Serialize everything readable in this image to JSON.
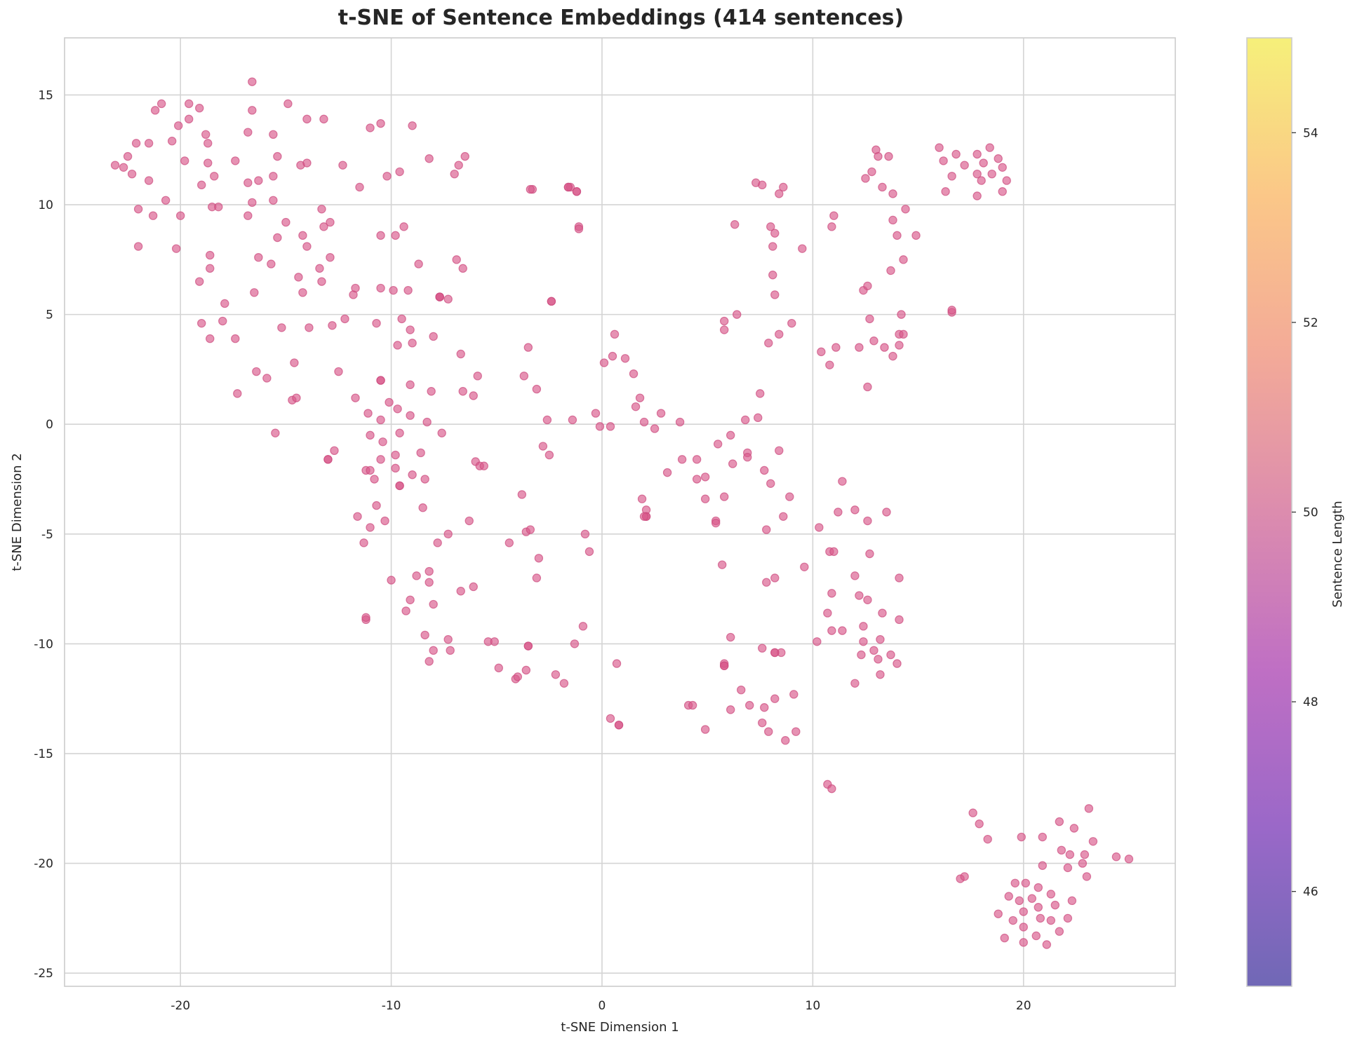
{
  "chart_data": {
    "type": "scatter",
    "title": "t-SNE of Sentence Embeddings (414 sentences)",
    "xlabel": "t-SNE Dimension 1",
    "ylabel": "t-SNE Dimension 2",
    "xlim": [
      -25.5,
      27.2
    ],
    "ylim": [
      -25.6,
      17.6
    ],
    "xticks": [
      -20,
      -10,
      0,
      10,
      20
    ],
    "yticks": [
      15,
      10,
      5,
      0,
      -5,
      -10,
      -15,
      -20,
      -25
    ],
    "grid": true,
    "point_color": "#d9578a",
    "point_alpha": 0.65,
    "colorbar": {
      "label": "Sentence Length",
      "range": [
        45,
        55
      ],
      "ticks": [
        46,
        48,
        50,
        52,
        54
      ],
      "colormap": "plasma",
      "stops": [
        "#7068b6",
        "#9a68c8",
        "#bf6fc4",
        "#dc8cae",
        "#f3aa98",
        "#fbc788",
        "#f6f07a"
      ]
    },
    "points": [
      [
        -23.1,
        11.8
      ],
      [
        -22.7,
        11.7
      ],
      [
        -22.5,
        12.2
      ],
      [
        -22.3,
        11.4
      ],
      [
        -22.1,
        12.8
      ],
      [
        -22.0,
        9.8
      ],
      [
        -22.0,
        8.1
      ],
      [
        -21.5,
        11.1
      ],
      [
        -21.5,
        12.8
      ],
      [
        -21.3,
        9.5
      ],
      [
        -21.2,
        14.3
      ],
      [
        -20.9,
        14.6
      ],
      [
        -20.7,
        10.2
      ],
      [
        -20.4,
        12.9
      ],
      [
        -20.1,
        13.6
      ],
      [
        -20.0,
        9.5
      ],
      [
        -20.2,
        8.0
      ],
      [
        -19.8,
        12.0
      ],
      [
        -19.6,
        14.6
      ],
      [
        -19.6,
        13.9
      ],
      [
        -19.1,
        14.4
      ],
      [
        -19.0,
        10.9
      ],
      [
        -18.8,
        13.2
      ],
      [
        -18.7,
        12.8
      ],
      [
        -18.7,
        11.9
      ],
      [
        -18.6,
        7.7
      ],
      [
        -18.6,
        7.1
      ],
      [
        -18.6,
        3.9
      ],
      [
        -18.5,
        9.9
      ],
      [
        -18.4,
        11.3
      ],
      [
        -18.2,
        9.9
      ],
      [
        -19.1,
        6.5
      ],
      [
        -19.0,
        4.6
      ],
      [
        -17.9,
        5.5
      ],
      [
        -18.0,
        4.7
      ],
      [
        -17.4,
        12.0
      ],
      [
        -17.4,
        3.9
      ],
      [
        -17.3,
        1.4
      ],
      [
        -16.8,
        13.3
      ],
      [
        -16.8,
        11.0
      ],
      [
        -16.8,
        9.5
      ],
      [
        -16.6,
        15.6
      ],
      [
        -16.6,
        14.3
      ],
      [
        -16.6,
        10.1
      ],
      [
        -16.5,
        6.0
      ],
      [
        -16.4,
        2.4
      ],
      [
        -16.3,
        7.6
      ],
      [
        -16.3,
        11.1
      ],
      [
        -15.9,
        2.1
      ],
      [
        -15.7,
        7.3
      ],
      [
        -15.6,
        13.2
      ],
      [
        -15.6,
        11.3
      ],
      [
        -15.6,
        10.2
      ],
      [
        -15.4,
        12.2
      ],
      [
        -15.4,
        8.5
      ],
      [
        -15.5,
        -0.4
      ],
      [
        -15.2,
        4.4
      ],
      [
        -15.0,
        9.2
      ],
      [
        -14.9,
        14.6
      ],
      [
        -14.7,
        1.1
      ],
      [
        -14.6,
        2.8
      ],
      [
        -14.5,
        1.2
      ],
      [
        -14.4,
        6.7
      ],
      [
        -14.3,
        11.8
      ],
      [
        -14.2,
        8.6
      ],
      [
        -14.2,
        6.0
      ],
      [
        -14.0,
        11.9
      ],
      [
        -14.0,
        8.1
      ],
      [
        -14.0,
        13.9
      ],
      [
        -13.9,
        4.4
      ],
      [
        -13.4,
        7.1
      ],
      [
        -13.3,
        9.8
      ],
      [
        -13.3,
        6.5
      ],
      [
        -13.2,
        13.9
      ],
      [
        -13.2,
        9.0
      ],
      [
        -13.0,
        -1.6
      ],
      [
        -12.9,
        9.2
      ],
      [
        -12.9,
        7.6
      ],
      [
        -12.8,
        4.5
      ],
      [
        -12.7,
        -1.2
      ],
      [
        -12.5,
        2.4
      ],
      [
        -12.3,
        11.8
      ],
      [
        -12.2,
        4.8
      ],
      [
        -11.8,
        5.9
      ],
      [
        -11.7,
        6.2
      ],
      [
        -11.7,
        1.2
      ],
      [
        -11.6,
        -4.2
      ],
      [
        -11.5,
        10.8
      ],
      [
        -11.3,
        -5.4
      ],
      [
        -11.2,
        -8.9
      ],
      [
        -11.2,
        -8.8
      ],
      [
        -11.2,
        -2.1
      ],
      [
        -11.1,
        0.5
      ],
      [
        -11.0,
        -4.7
      ],
      [
        -11.0,
        13.5
      ],
      [
        -11.0,
        -0.5
      ],
      [
        -10.8,
        -2.5
      ],
      [
        -10.7,
        -3.7
      ],
      [
        -10.7,
        4.6
      ],
      [
        -10.5,
        13.7
      ],
      [
        -10.5,
        8.6
      ],
      [
        -10.5,
        6.2
      ],
      [
        -10.5,
        2.0
      ],
      [
        -10.5,
        0.2
      ],
      [
        -10.5,
        -1.6
      ],
      [
        -10.4,
        -0.8
      ],
      [
        -10.3,
        -4.4
      ],
      [
        -10.2,
        11.3
      ],
      [
        -10.1,
        1.0
      ],
      [
        -10.0,
        -7.1
      ],
      [
        -9.9,
        6.1
      ],
      [
        -9.8,
        8.6
      ],
      [
        -9.8,
        -1.4
      ],
      [
        -9.8,
        -2.0
      ],
      [
        -9.7,
        3.6
      ],
      [
        -9.7,
        0.7
      ],
      [
        -9.6,
        11.5
      ],
      [
        -9.6,
        -0.4
      ],
      [
        -9.6,
        -2.8
      ],
      [
        -9.5,
        4.8
      ],
      [
        -9.4,
        9.0
      ],
      [
        -9.3,
        -8.5
      ],
      [
        -9.2,
        6.1
      ],
      [
        -9.1,
        4.3
      ],
      [
        -9.1,
        1.8
      ],
      [
        -9.1,
        0.4
      ],
      [
        -9.1,
        -8.0
      ],
      [
        -9.0,
        13.6
      ],
      [
        -9.0,
        -2.3
      ],
      [
        -9.0,
        3.7
      ],
      [
        -8.8,
        -6.9
      ],
      [
        -8.7,
        7.3
      ],
      [
        -8.6,
        -1.3
      ],
      [
        -8.5,
        -3.8
      ],
      [
        -8.4,
        -9.6
      ],
      [
        -8.4,
        -2.5
      ],
      [
        -8.3,
        0.1
      ],
      [
        -8.2,
        -6.7
      ],
      [
        -8.2,
        -7.2
      ],
      [
        -8.2,
        -10.8
      ],
      [
        -8.2,
        12.1
      ],
      [
        -8.1,
        1.5
      ],
      [
        -8.0,
        -8.2
      ],
      [
        -8.0,
        -10.3
      ],
      [
        -8.0,
        4.0
      ],
      [
        -7.8,
        -5.4
      ],
      [
        -7.7,
        5.8
      ],
      [
        -7.6,
        -0.4
      ],
      [
        -7.7,
        5.8
      ],
      [
        -7.3,
        5.7
      ],
      [
        -7.3,
        -9.8
      ],
      [
        -7.3,
        -5.0
      ],
      [
        -7.2,
        -10.3
      ],
      [
        -7.0,
        11.4
      ],
      [
        -6.9,
        7.5
      ],
      [
        -6.8,
        11.8
      ],
      [
        -6.7,
        3.2
      ],
      [
        -6.7,
        -7.6
      ],
      [
        -6.6,
        1.5
      ],
      [
        -6.6,
        7.1
      ],
      [
        -6.5,
        12.2
      ],
      [
        -6.3,
        -4.4
      ],
      [
        -6.1,
        1.3
      ],
      [
        -6.1,
        -7.4
      ],
      [
        -6.0,
        -1.7
      ],
      [
        -5.9,
        2.2
      ],
      [
        -5.8,
        -1.9
      ],
      [
        -5.6,
        -1.9
      ],
      [
        -5.4,
        -9.9
      ],
      [
        -5.1,
        -9.9
      ],
      [
        -4.9,
        -11.1
      ],
      [
        -4.4,
        -5.4
      ],
      [
        -4.1,
        -11.6
      ],
      [
        -4.0,
        -11.5
      ],
      [
        -3.8,
        -3.2
      ],
      [
        -3.7,
        2.2
      ],
      [
        -3.6,
        -11.2
      ],
      [
        -3.6,
        -4.9
      ],
      [
        -3.5,
        3.5
      ],
      [
        -3.5,
        -10.1
      ],
      [
        -3.4,
        -4.8
      ],
      [
        -3.3,
        10.7
      ],
      [
        -3.4,
        10.7
      ],
      [
        -3.1,
        1.6
      ],
      [
        -3.1,
        -7.0
      ],
      [
        -3.0,
        -6.1
      ],
      [
        -2.8,
        -1.0
      ],
      [
        -2.6,
        0.2
      ],
      [
        -2.5,
        -1.4
      ],
      [
        -2.4,
        5.6
      ],
      [
        -2.2,
        -11.4
      ],
      [
        -1.8,
        -11.8
      ],
      [
        -1.6,
        10.8
      ],
      [
        -1.5,
        10.8
      ],
      [
        -1.4,
        0.2
      ],
      [
        -1.3,
        -10.0
      ],
      [
        -1.2,
        10.6
      ],
      [
        -1.2,
        10.6
      ],
      [
        -1.1,
        9.0
      ],
      [
        -1.1,
        8.9
      ],
      [
        -0.9,
        -9.2
      ],
      [
        -0.8,
        -5.0
      ],
      [
        -0.6,
        -5.8
      ],
      [
        -0.3,
        0.5
      ],
      [
        -0.1,
        -0.1
      ],
      [
        0.1,
        2.8
      ],
      [
        0.4,
        -0.1
      ],
      [
        0.4,
        -13.4
      ],
      [
        0.5,
        3.1
      ],
      [
        0.6,
        4.1
      ],
      [
        0.7,
        -10.9
      ],
      [
        0.8,
        -13.7
      ],
      [
        0.8,
        -13.7
      ],
      [
        1.1,
        3.0
      ],
      [
        1.5,
        2.3
      ],
      [
        1.6,
        0.8
      ],
      [
        1.8,
        1.2
      ],
      [
        1.9,
        -3.4
      ],
      [
        2.0,
        0.1
      ],
      [
        2.1,
        -3.9
      ],
      [
        2.1,
        -4.2
      ],
      [
        2.1,
        -4.2
      ],
      [
        2.5,
        -0.2
      ],
      [
        2.8,
        0.5
      ],
      [
        3.1,
        -2.2
      ],
      [
        3.7,
        0.1
      ],
      [
        3.8,
        -1.6
      ],
      [
        4.1,
        -12.8
      ],
      [
        4.3,
        -12.8
      ],
      [
        4.5,
        -2.5
      ],
      [
        4.5,
        -1.6
      ],
      [
        4.9,
        -13.9
      ],
      [
        4.9,
        -2.4
      ],
      [
        4.9,
        -3.4
      ],
      [
        5.4,
        -4.4
      ],
      [
        5.4,
        -4.5
      ],
      [
        5.5,
        -0.9
      ],
      [
        5.7,
        -6.4
      ],
      [
        5.8,
        -11.0
      ],
      [
        5.8,
        -10.9
      ],
      [
        5.8,
        4.7
      ],
      [
        5.8,
        4.3
      ],
      [
        5.8,
        -3.3
      ],
      [
        6.1,
        -13.0
      ],
      [
        6.1,
        -9.7
      ],
      [
        6.1,
        -0.5
      ],
      [
        6.2,
        -1.8
      ],
      [
        6.3,
        9.1
      ],
      [
        6.4,
        5.0
      ],
      [
        6.6,
        -12.1
      ],
      [
        6.8,
        0.2
      ],
      [
        6.9,
        -1.3
      ],
      [
        6.9,
        -1.5
      ],
      [
        7.0,
        -12.8
      ],
      [
        7.3,
        11.0
      ],
      [
        7.4,
        0.3
      ],
      [
        7.5,
        1.4
      ],
      [
        7.6,
        10.9
      ],
      [
        7.6,
        -13.6
      ],
      [
        7.6,
        -10.2
      ],
      [
        7.7,
        -12.9
      ],
      [
        7.7,
        -2.1
      ],
      [
        7.8,
        -7.2
      ],
      [
        7.8,
        -4.8
      ],
      [
        7.9,
        -14.0
      ],
      [
        7.9,
        3.7
      ],
      [
        8.0,
        9.0
      ],
      [
        8.0,
        -2.7
      ],
      [
        8.1,
        8.1
      ],
      [
        8.1,
        6.8
      ],
      [
        8.2,
        8.7
      ],
      [
        8.2,
        5.9
      ],
      [
        8.2,
        -7.0
      ],
      [
        8.2,
        -10.4
      ],
      [
        8.2,
        -12.5
      ],
      [
        8.4,
        10.5
      ],
      [
        8.4,
        -1.2
      ],
      [
        8.4,
        4.1
      ],
      [
        8.5,
        -10.4
      ],
      [
        8.6,
        10.8
      ],
      [
        8.6,
        -4.2
      ],
      [
        8.7,
        -14.4
      ],
      [
        8.9,
        -3.3
      ],
      [
        9.0,
        4.6
      ],
      [
        9.1,
        -12.3
      ],
      [
        9.2,
        -14.0
      ],
      [
        9.5,
        8.0
      ],
      [
        9.6,
        -6.5
      ],
      [
        10.2,
        -9.9
      ],
      [
        10.3,
        -4.7
      ],
      [
        10.4,
        3.3
      ],
      [
        10.7,
        -16.4
      ],
      [
        10.7,
        -8.6
      ],
      [
        10.8,
        -5.8
      ],
      [
        10.8,
        2.7
      ],
      [
        10.9,
        -16.6
      ],
      [
        10.9,
        9.0
      ],
      [
        10.9,
        -9.4
      ],
      [
        10.9,
        -7.7
      ],
      [
        11.0,
        9.5
      ],
      [
        11.0,
        -5.8
      ],
      [
        11.1,
        3.5
      ],
      [
        11.2,
        -4.0
      ],
      [
        11.4,
        -9.4
      ],
      [
        11.4,
        -2.6
      ],
      [
        12.0,
        -3.9
      ],
      [
        12.0,
        -6.9
      ],
      [
        12.0,
        -11.8
      ],
      [
        12.2,
        -7.8
      ],
      [
        12.2,
        3.5
      ],
      [
        12.3,
        -10.5
      ],
      [
        12.4,
        6.1
      ],
      [
        12.4,
        -9.9
      ],
      [
        12.4,
        -9.2
      ],
      [
        12.5,
        11.2
      ],
      [
        12.6,
        6.3
      ],
      [
        12.6,
        1.7
      ],
      [
        12.6,
        -4.4
      ],
      [
        12.6,
        -8.0
      ],
      [
        12.7,
        -5.9
      ],
      [
        12.7,
        4.8
      ],
      [
        12.8,
        11.5
      ],
      [
        12.9,
        -10.3
      ],
      [
        12.9,
        3.8
      ],
      [
        13.0,
        12.5
      ],
      [
        13.1,
        -10.7
      ],
      [
        13.1,
        12.2
      ],
      [
        13.2,
        -11.4
      ],
      [
        13.2,
        -9.8
      ],
      [
        13.3,
        10.8
      ],
      [
        13.3,
        -8.6
      ],
      [
        13.4,
        3.5
      ],
      [
        13.5,
        -4.0
      ],
      [
        13.6,
        12.2
      ],
      [
        13.7,
        7.0
      ],
      [
        13.7,
        -10.5
      ],
      [
        13.8,
        10.5
      ],
      [
        13.8,
        9.3
      ],
      [
        13.8,
        3.1
      ],
      [
        14.0,
        8.6
      ],
      [
        14.0,
        -10.9
      ],
      [
        14.1,
        4.1
      ],
      [
        14.1,
        3.6
      ],
      [
        14.1,
        -8.9
      ],
      [
        14.1,
        -7.0
      ],
      [
        14.2,
        5.0
      ],
      [
        14.3,
        7.5
      ],
      [
        14.3,
        4.1
      ],
      [
        14.4,
        9.8
      ],
      [
        14.9,
        8.6
      ],
      [
        16.0,
        12.6
      ],
      [
        16.2,
        12.0
      ],
      [
        16.3,
        10.6
      ],
      [
        16.6,
        11.3
      ],
      [
        16.6,
        5.1
      ],
      [
        16.6,
        5.2
      ],
      [
        16.8,
        12.3
      ],
      [
        17.0,
        -20.7
      ],
      [
        17.2,
        -20.6
      ],
      [
        17.2,
        11.8
      ],
      [
        17.6,
        -17.7
      ],
      [
        17.8,
        10.4
      ],
      [
        17.8,
        11.4
      ],
      [
        17.8,
        12.3
      ],
      [
        17.9,
        -18.2
      ],
      [
        18.0,
        11.1
      ],
      [
        18.1,
        11.9
      ],
      [
        18.3,
        -18.9
      ],
      [
        18.4,
        12.6
      ],
      [
        18.5,
        11.4
      ],
      [
        18.8,
        -22.3
      ],
      [
        18.8,
        12.1
      ],
      [
        19.0,
        10.6
      ],
      [
        19.0,
        11.7
      ],
      [
        19.1,
        -23.4
      ],
      [
        19.2,
        11.1
      ],
      [
        19.3,
        -21.5
      ],
      [
        19.5,
        -22.6
      ],
      [
        19.6,
        -20.9
      ],
      [
        19.8,
        -21.7
      ],
      [
        19.9,
        -18.8
      ],
      [
        20.0,
        -22.9
      ],
      [
        20.0,
        -22.2
      ],
      [
        20.0,
        -23.6
      ],
      [
        20.1,
        -20.9
      ],
      [
        20.4,
        -21.6
      ],
      [
        20.6,
        -23.3
      ],
      [
        20.7,
        -22.0
      ],
      [
        20.7,
        -21.1
      ],
      [
        20.8,
        -22.5
      ],
      [
        20.9,
        -18.8
      ],
      [
        20.9,
        -20.1
      ],
      [
        21.1,
        -23.7
      ],
      [
        21.3,
        -21.4
      ],
      [
        21.3,
        -22.6
      ],
      [
        21.5,
        -21.9
      ],
      [
        21.7,
        -23.1
      ],
      [
        21.7,
        -18.1
      ],
      [
        21.8,
        -19.4
      ],
      [
        22.1,
        -22.5
      ],
      [
        22.1,
        -20.2
      ],
      [
        22.2,
        -19.6
      ],
      [
        22.3,
        -21.7
      ],
      [
        22.4,
        -18.4
      ],
      [
        22.8,
        -20.0
      ],
      [
        22.9,
        -19.6
      ],
      [
        23.0,
        -20.6
      ],
      [
        23.1,
        -17.5
      ],
      [
        23.3,
        -19.0
      ],
      [
        24.4,
        -19.7
      ],
      [
        25.0,
        -19.8
      ],
      [
        -13.0,
        -1.6
      ],
      [
        -11.0,
        -2.1
      ],
      [
        -9.6,
        -2.8
      ],
      [
        -10.5,
        2.0
      ],
      [
        -7.7,
        5.8
      ],
      [
        -3.5,
        -10.1
      ],
      [
        -2.4,
        5.6
      ],
      [
        -1.6,
        10.8
      ],
      [
        2.0,
        -4.2
      ],
      [
        5.8,
        -11.0
      ],
      [
        8.2,
        -10.4
      ]
    ]
  }
}
